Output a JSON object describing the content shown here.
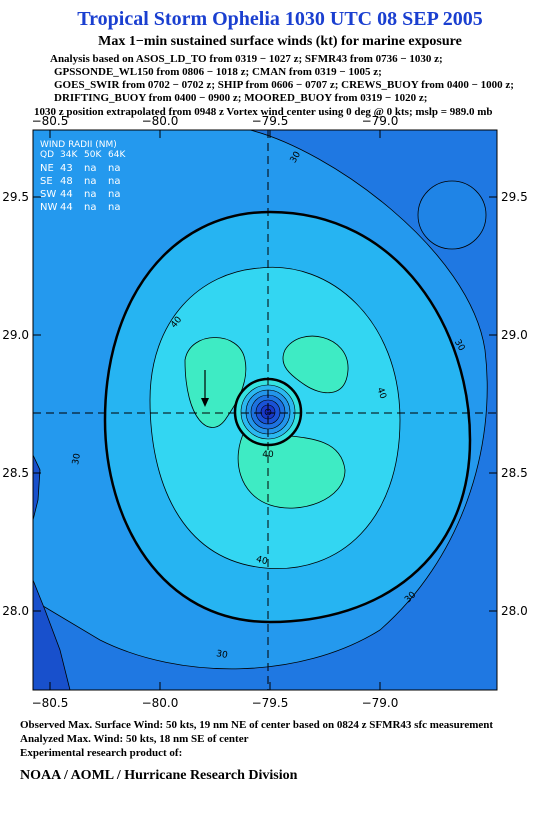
{
  "header": {
    "title": "Tropical Storm Ophelia 1030 UTC 08 SEP 2005",
    "subtitle": "Max 1−min sustained surface winds (kt) for marine exposure",
    "lines": [
      "Analysis based on  ASOS_LD_TO from 0319 − 1027 z;  SFMR43 from 0736 − 1030 z;",
      "GPSSONDE_WL150 from 0806 − 1018 z;  CMAN from 0319 − 1005 z;",
      "GOES_SWIR from 0702 − 0702 z;  SHIP from 0606 − 0707 z;  CREWS_BUOY from 0400 − 1000 z;",
      "DRIFTING_BUOY from 0400 − 0900 z;  MOORED_BUOY from 0319 − 1020 z;",
      "1030 z position extrapolated from 0948 z Vortex wind center using 0 deg @ 0 kts; mslp = 989.0 mb"
    ]
  },
  "map": {
    "xticks": [
      {
        "value": -80.5,
        "label": "−80.5"
      },
      {
        "value": -80.0,
        "label": "−80.0"
      },
      {
        "value": -79.5,
        "label": "−79.5"
      },
      {
        "value": -79.0,
        "label": "−79.0"
      }
    ],
    "yticks": [
      {
        "value": 29.5,
        "label": "29.5"
      },
      {
        "value": 29.0,
        "label": "29.0"
      },
      {
        "value": 28.5,
        "label": "28.5"
      },
      {
        "value": 28.0,
        "label": "28.0"
      }
    ],
    "contour_labels": [
      30,
      30,
      30,
      30,
      30,
      40,
      40,
      40,
      40
    ]
  },
  "wind_radii": {
    "title": "WIND RADII (NM)",
    "header": [
      "QD",
      "34K",
      "50K",
      "64K"
    ],
    "rows": [
      [
        "NE",
        43,
        "na",
        "na"
      ],
      [
        "SE",
        48,
        "na",
        "na"
      ],
      [
        "SW",
        44,
        "na",
        "na"
      ],
      [
        "NW",
        44,
        "na",
        "na"
      ]
    ]
  },
  "footer": {
    "lines": [
      "Observed Max. Surface Wind: 50 kts, 19 nm NE of center based on 0824 z SFMR43 sfc measurement",
      "Analyzed Max. Wind: 50 kts, 18 nm SE of center",
      "Experimental research product of:"
    ],
    "org": "NOAA / AOML / Hurricane Research Division"
  }
}
